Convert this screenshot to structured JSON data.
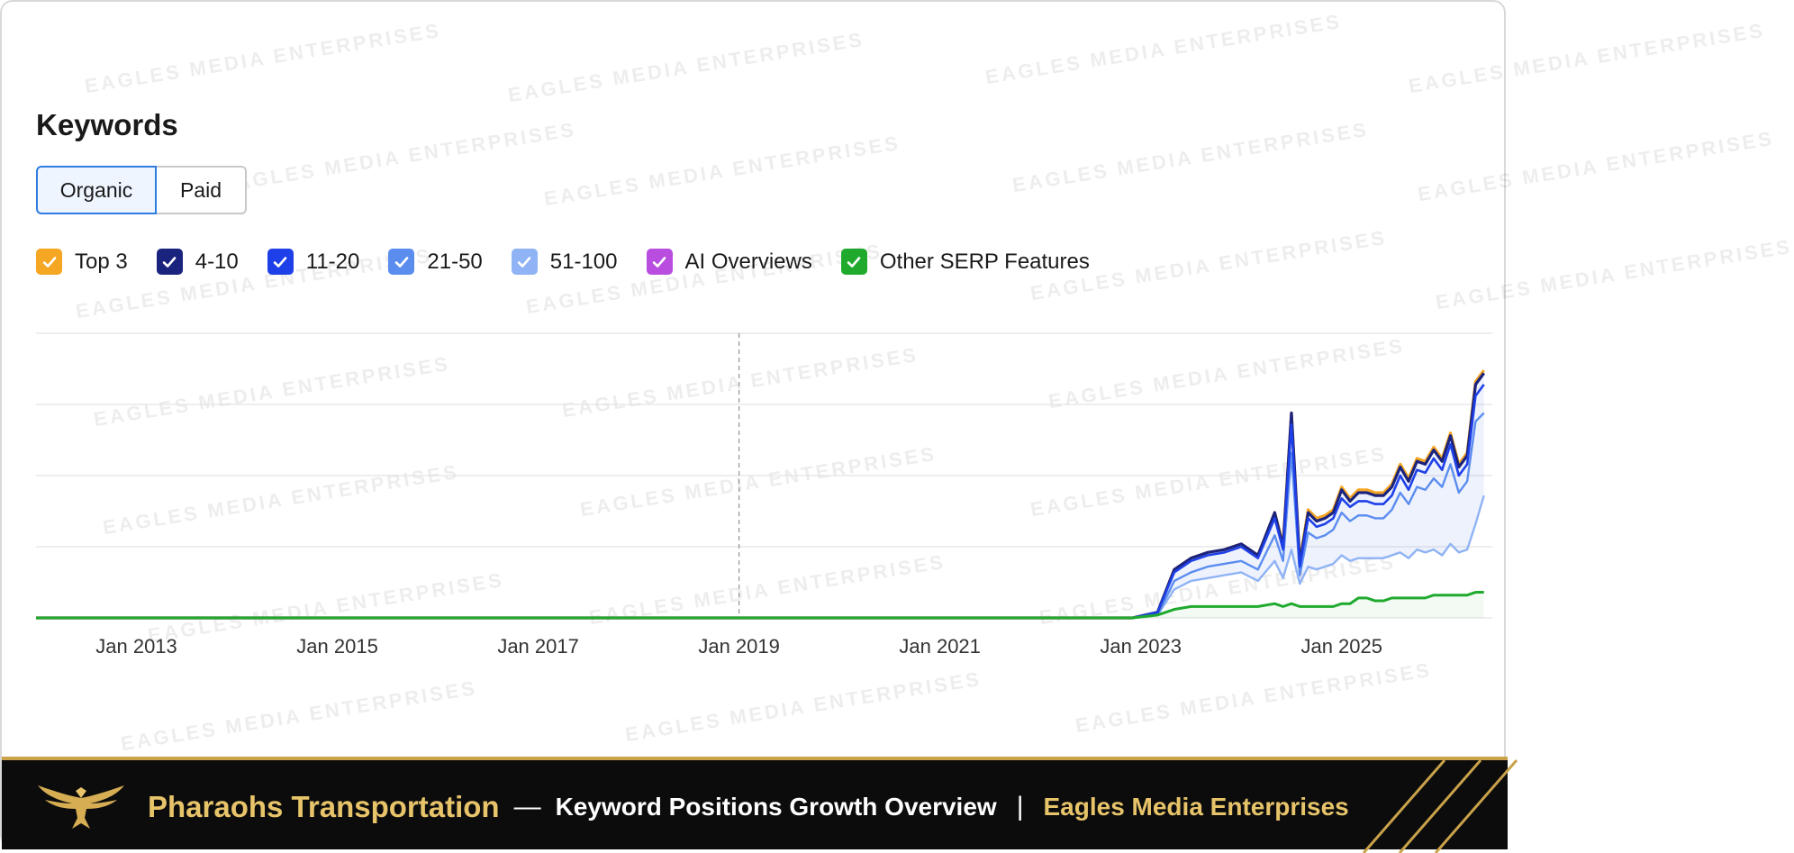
{
  "watermark": "EAGLES MEDIA ENTERPRISES",
  "title": "Keywords",
  "tabs": [
    {
      "label": "Organic",
      "selected": true
    },
    {
      "label": "Paid",
      "selected": false
    }
  ],
  "legend": [
    {
      "label": "Top 3",
      "color": "#f5a623",
      "checked": true
    },
    {
      "label": "4-10",
      "color": "#1a237e",
      "checked": true
    },
    {
      "label": "11-20",
      "color": "#1e40e8",
      "checked": true
    },
    {
      "label": "21-50",
      "color": "#5b8def",
      "checked": true
    },
    {
      "label": "51-100",
      "color": "#8fb3f5",
      "checked": true
    },
    {
      "label": "AI Overviews",
      "color": "#b84de0",
      "checked": true
    },
    {
      "label": "Other SERP Features",
      "color": "#1faa2e",
      "checked": true
    }
  ],
  "chart_data": {
    "type": "area",
    "x_ticks": [
      "Jan 2013",
      "Jan 2015",
      "Jan 2017",
      "Jan 2019",
      "Jan 2021",
      "Jan 2023",
      "Jan 2025"
    ],
    "x_range": [
      "2012-01",
      "2026-07"
    ],
    "y_axis_labels_shown": false,
    "grid": true,
    "annotation_marker_x": "2019-01",
    "x": [
      "2012-01",
      "2022-12",
      "2023-03",
      "2023-05",
      "2023-07",
      "2023-09",
      "2023-11",
      "2024-01",
      "2024-03",
      "2024-05",
      "2024-06",
      "2024-07",
      "2024-08",
      "2024-09",
      "2024-10",
      "2024-11",
      "2024-12",
      "2025-01",
      "2025-02",
      "2025-03",
      "2025-04",
      "2025-05",
      "2025-06",
      "2025-07",
      "2025-08",
      "2025-09",
      "2025-10",
      "2025-11",
      "2025-12",
      "2026-01",
      "2026-02",
      "2026-03",
      "2026-04",
      "2026-05",
      "2026-06"
    ],
    "series": [
      {
        "name": "Top 3",
        "values": [
          0,
          0,
          2,
          17,
          21,
          23,
          24,
          26,
          22,
          37,
          26,
          72,
          20,
          38,
          35,
          36,
          38,
          46,
          42,
          45,
          45,
          44,
          44,
          47,
          54,
          49,
          56,
          55,
          60,
          56,
          65,
          54,
          58,
          83,
          87
        ]
      },
      {
        "name": "4-10",
        "values": [
          0,
          0,
          2,
          17,
          21,
          23,
          24,
          26,
          22,
          37,
          25,
          72,
          19,
          37,
          34,
          35,
          37,
          45,
          41,
          44,
          44,
          43,
          43,
          46,
          53,
          48,
          55,
          54,
          59,
          55,
          64,
          53,
          57,
          82,
          86
        ]
      },
      {
        "name": "11-20",
        "values": [
          0,
          0,
          2,
          16,
          20,
          22,
          23,
          25,
          21,
          35,
          24,
          68,
          18,
          35,
          32,
          33,
          35,
          42,
          39,
          41,
          41,
          40,
          40,
          43,
          50,
          45,
          52,
          51,
          56,
          52,
          61,
          50,
          54,
          78,
          82
        ]
      },
      {
        "name": "21-50",
        "values": [
          0,
          0,
          1,
          13,
          16,
          18,
          19,
          20,
          17,
          29,
          20,
          58,
          15,
          30,
          28,
          29,
          31,
          37,
          34,
          36,
          36,
          35,
          35,
          38,
          44,
          40,
          46,
          45,
          49,
          46,
          54,
          44,
          48,
          69,
          72
        ]
      },
      {
        "name": "51-100",
        "values": [
          0,
          0,
          1,
          10,
          13,
          14,
          15,
          16,
          13,
          20,
          14,
          24,
          12,
          18,
          17,
          18,
          19,
          22,
          20,
          21,
          21,
          21,
          21,
          22,
          23,
          21,
          24,
          23,
          24,
          22,
          26,
          23,
          24,
          33,
          43
        ]
      },
      {
        "name": "Other SERP Features",
        "values": [
          0,
          0,
          1,
          3,
          4,
          4,
          4,
          4,
          4,
          5,
          4,
          5,
          4,
          4,
          4,
          4,
          4,
          5,
          5,
          7,
          7,
          6,
          6,
          7,
          7,
          7,
          7,
          7,
          8,
          8,
          8,
          8,
          8,
          9,
          9
        ]
      }
    ],
    "ylim": [
      0,
      100
    ]
  },
  "footer": {
    "brand": "Pharaohs Transportation",
    "dash": "—",
    "subtitle": "Keyword Positions Growth Overview",
    "pipe": "|",
    "org": "Eagles Media Enterprises"
  }
}
